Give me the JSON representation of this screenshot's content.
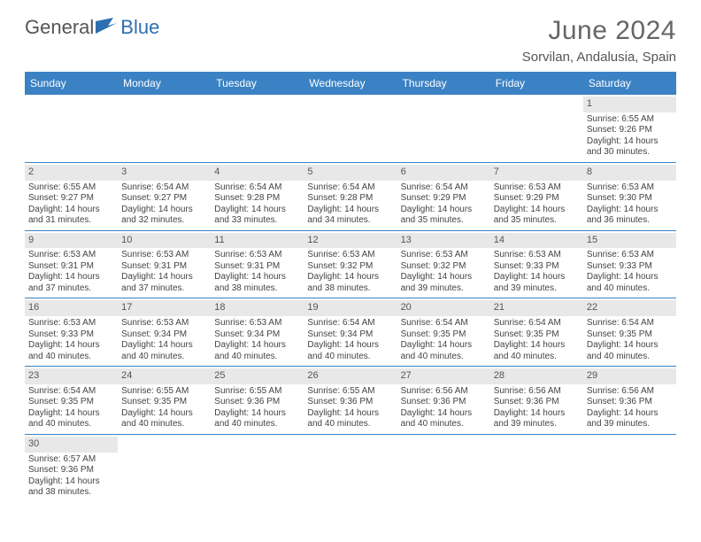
{
  "header": {
    "logo_part1": "General",
    "logo_part2": "Blue",
    "month_title": "June 2024",
    "location": "Sorvilan, Andalusia, Spain"
  },
  "colors": {
    "header_bar": "#3b82c4",
    "header_text": "#ffffff",
    "daynum_bg": "#e8e8e8",
    "row_border": "#3b82c4",
    "logo_accent": "#2d6fb0",
    "body_text": "#444444"
  },
  "typography": {
    "title_fontsize": 30,
    "location_fontsize": 15,
    "dayhead_fontsize": 12,
    "cell_fontsize": 10
  },
  "day_names": [
    "Sunday",
    "Monday",
    "Tuesday",
    "Wednesday",
    "Thursday",
    "Friday",
    "Saturday"
  ],
  "weeks": [
    [
      null,
      null,
      null,
      null,
      null,
      null,
      {
        "n": "1",
        "sr": "6:55 AM",
        "ss": "9:26 PM",
        "dl": "14 hours and 30 minutes."
      }
    ],
    [
      {
        "n": "2",
        "sr": "6:55 AM",
        "ss": "9:27 PM",
        "dl": "14 hours and 31 minutes."
      },
      {
        "n": "3",
        "sr": "6:54 AM",
        "ss": "9:27 PM",
        "dl": "14 hours and 32 minutes."
      },
      {
        "n": "4",
        "sr": "6:54 AM",
        "ss": "9:28 PM",
        "dl": "14 hours and 33 minutes."
      },
      {
        "n": "5",
        "sr": "6:54 AM",
        "ss": "9:28 PM",
        "dl": "14 hours and 34 minutes."
      },
      {
        "n": "6",
        "sr": "6:54 AM",
        "ss": "9:29 PM",
        "dl": "14 hours and 35 minutes."
      },
      {
        "n": "7",
        "sr": "6:53 AM",
        "ss": "9:29 PM",
        "dl": "14 hours and 35 minutes."
      },
      {
        "n": "8",
        "sr": "6:53 AM",
        "ss": "9:30 PM",
        "dl": "14 hours and 36 minutes."
      }
    ],
    [
      {
        "n": "9",
        "sr": "6:53 AM",
        "ss": "9:31 PM",
        "dl": "14 hours and 37 minutes."
      },
      {
        "n": "10",
        "sr": "6:53 AM",
        "ss": "9:31 PM",
        "dl": "14 hours and 37 minutes."
      },
      {
        "n": "11",
        "sr": "6:53 AM",
        "ss": "9:31 PM",
        "dl": "14 hours and 38 minutes."
      },
      {
        "n": "12",
        "sr": "6:53 AM",
        "ss": "9:32 PM",
        "dl": "14 hours and 38 minutes."
      },
      {
        "n": "13",
        "sr": "6:53 AM",
        "ss": "9:32 PM",
        "dl": "14 hours and 39 minutes."
      },
      {
        "n": "14",
        "sr": "6:53 AM",
        "ss": "9:33 PM",
        "dl": "14 hours and 39 minutes."
      },
      {
        "n": "15",
        "sr": "6:53 AM",
        "ss": "9:33 PM",
        "dl": "14 hours and 40 minutes."
      }
    ],
    [
      {
        "n": "16",
        "sr": "6:53 AM",
        "ss": "9:33 PM",
        "dl": "14 hours and 40 minutes."
      },
      {
        "n": "17",
        "sr": "6:53 AM",
        "ss": "9:34 PM",
        "dl": "14 hours and 40 minutes."
      },
      {
        "n": "18",
        "sr": "6:53 AM",
        "ss": "9:34 PM",
        "dl": "14 hours and 40 minutes."
      },
      {
        "n": "19",
        "sr": "6:54 AM",
        "ss": "9:34 PM",
        "dl": "14 hours and 40 minutes."
      },
      {
        "n": "20",
        "sr": "6:54 AM",
        "ss": "9:35 PM",
        "dl": "14 hours and 40 minutes."
      },
      {
        "n": "21",
        "sr": "6:54 AM",
        "ss": "9:35 PM",
        "dl": "14 hours and 40 minutes."
      },
      {
        "n": "22",
        "sr": "6:54 AM",
        "ss": "9:35 PM",
        "dl": "14 hours and 40 minutes."
      }
    ],
    [
      {
        "n": "23",
        "sr": "6:54 AM",
        "ss": "9:35 PM",
        "dl": "14 hours and 40 minutes."
      },
      {
        "n": "24",
        "sr": "6:55 AM",
        "ss": "9:35 PM",
        "dl": "14 hours and 40 minutes."
      },
      {
        "n": "25",
        "sr": "6:55 AM",
        "ss": "9:36 PM",
        "dl": "14 hours and 40 minutes."
      },
      {
        "n": "26",
        "sr": "6:55 AM",
        "ss": "9:36 PM",
        "dl": "14 hours and 40 minutes."
      },
      {
        "n": "27",
        "sr": "6:56 AM",
        "ss": "9:36 PM",
        "dl": "14 hours and 40 minutes."
      },
      {
        "n": "28",
        "sr": "6:56 AM",
        "ss": "9:36 PM",
        "dl": "14 hours and 39 minutes."
      },
      {
        "n": "29",
        "sr": "6:56 AM",
        "ss": "9:36 PM",
        "dl": "14 hours and 39 minutes."
      }
    ],
    [
      {
        "n": "30",
        "sr": "6:57 AM",
        "ss": "9:36 PM",
        "dl": "14 hours and 38 minutes."
      },
      null,
      null,
      null,
      null,
      null,
      null
    ]
  ],
  "labels": {
    "sunrise": "Sunrise:",
    "sunset": "Sunset:",
    "daylight": "Daylight:"
  }
}
